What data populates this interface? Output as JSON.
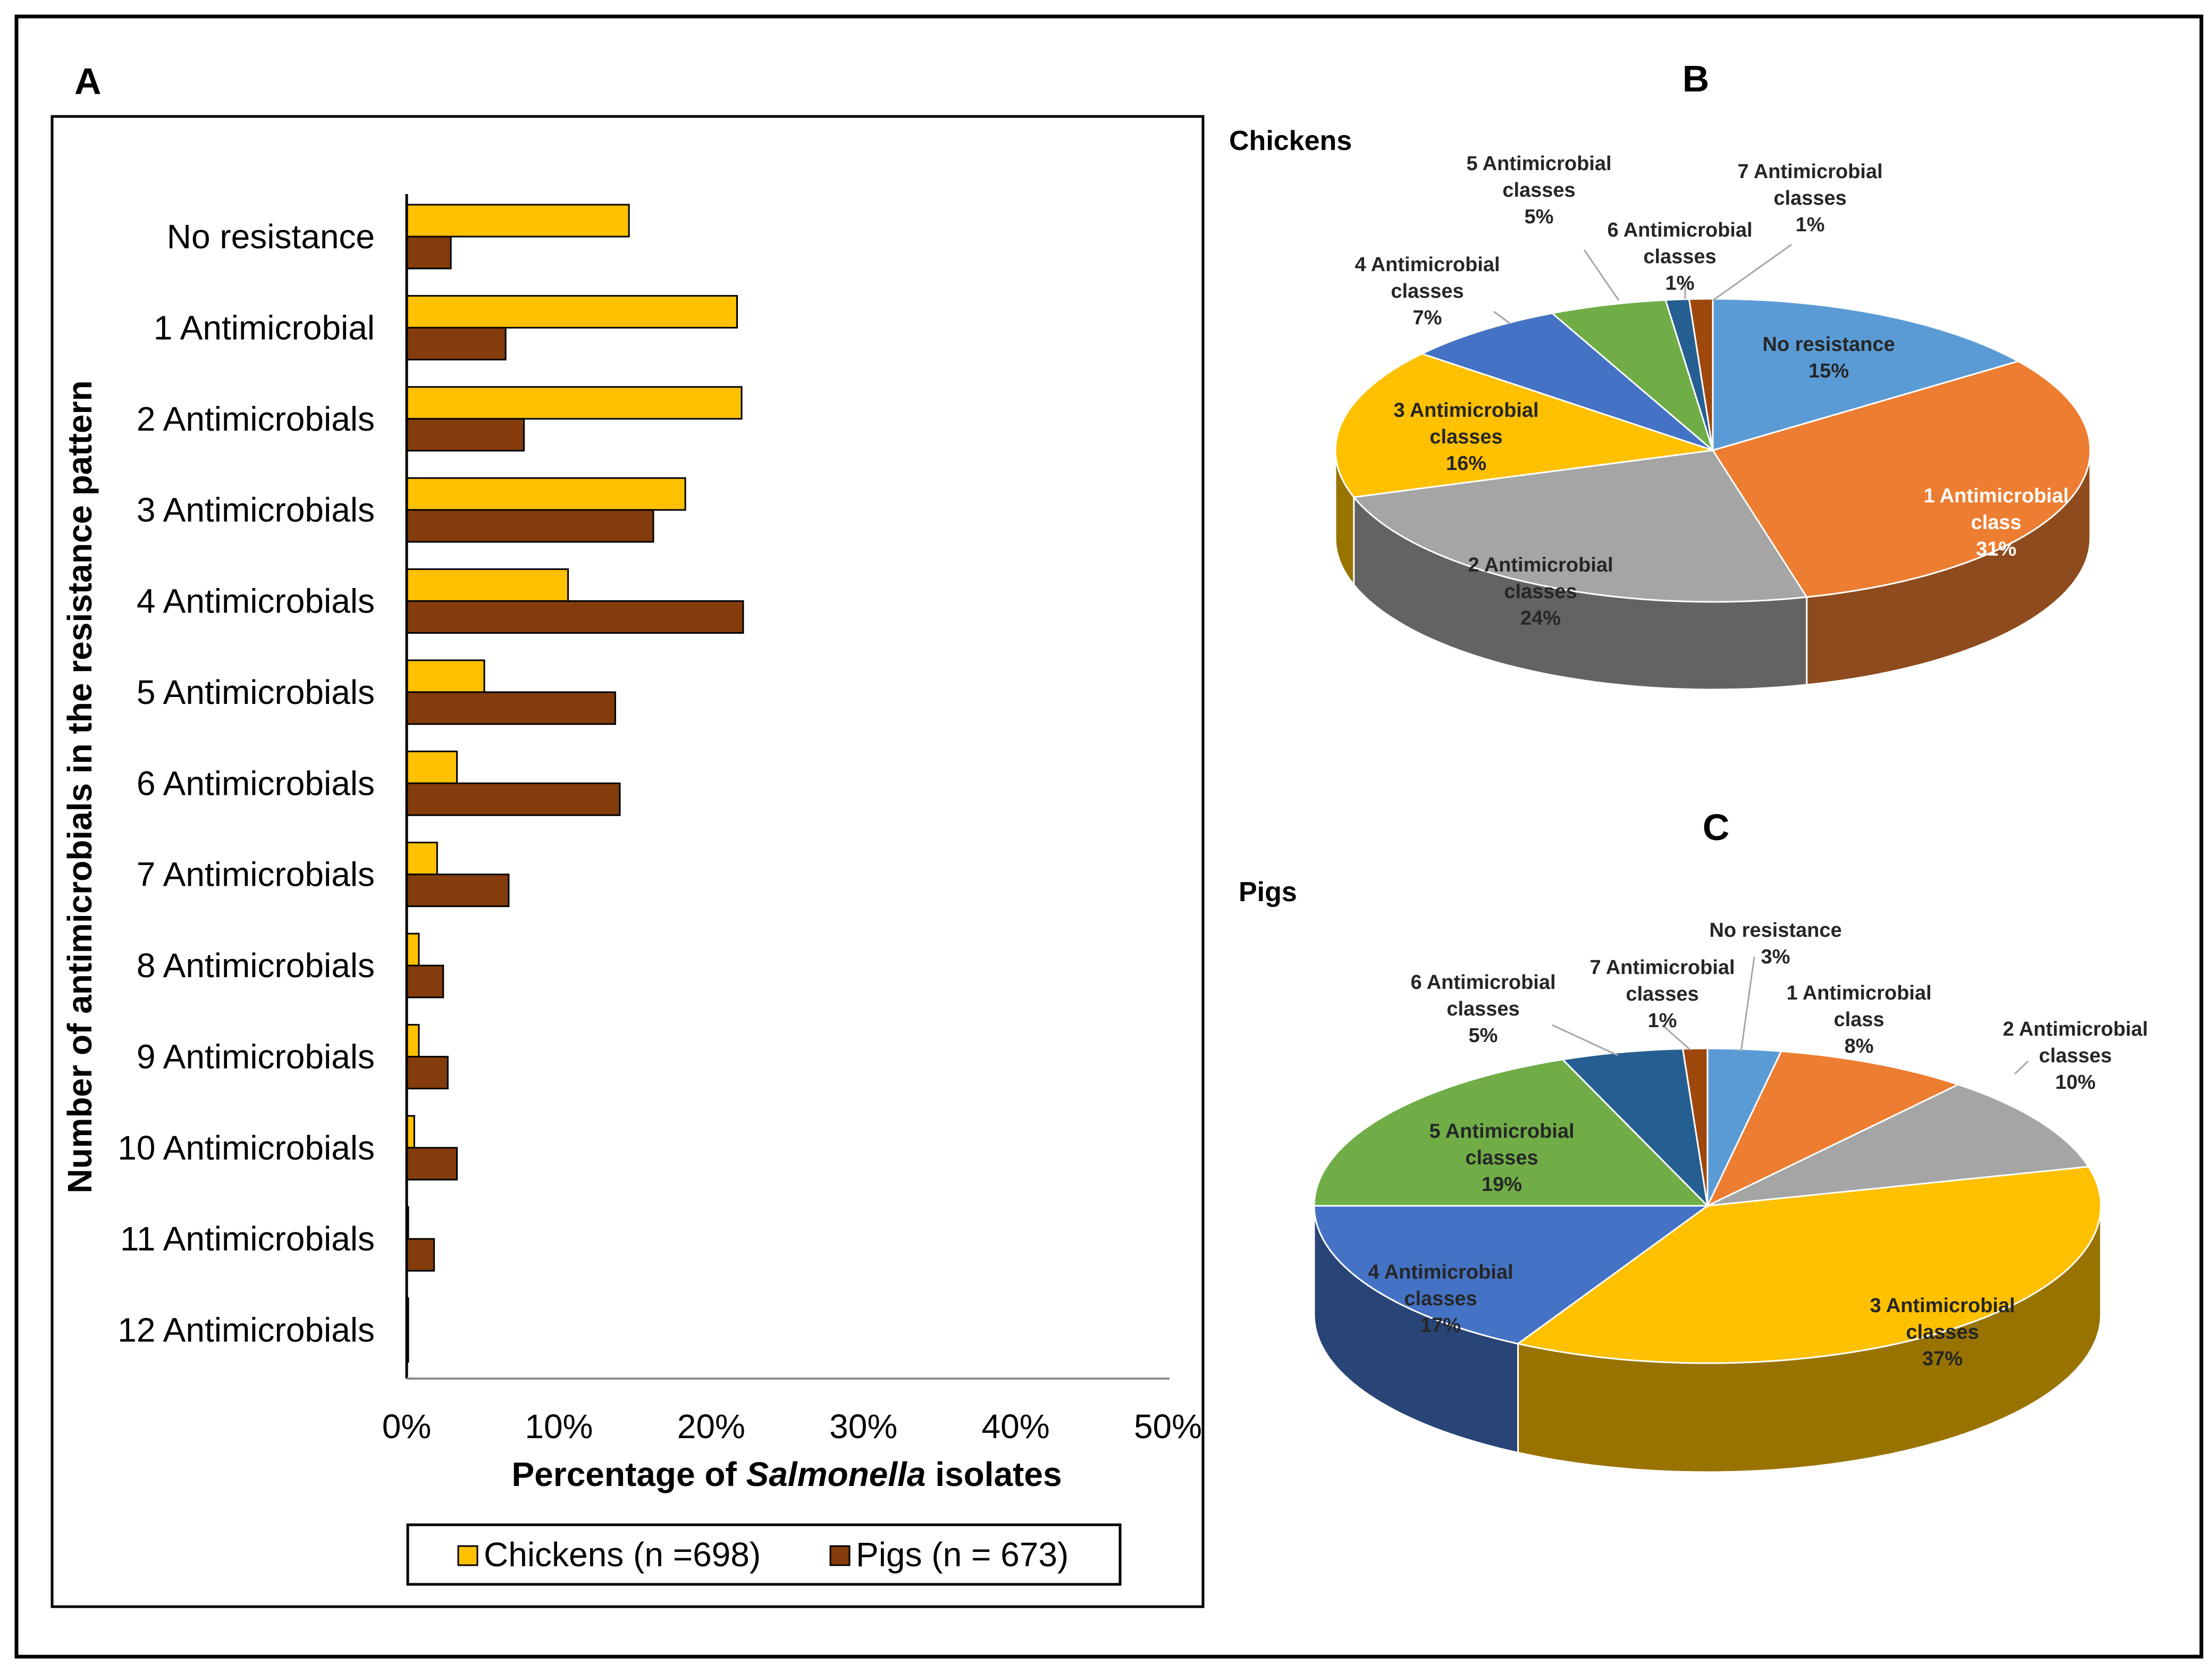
{
  "colors": {
    "chickens": "#FFC000",
    "pigs": "#843C0C",
    "blue_light": "#5B9BD5",
    "orange": "#ED7D31",
    "gray": "#A5A5A5",
    "yellow": "#FFC000",
    "blue": "#4472C4",
    "green": "#70AD47",
    "navy": "#255E91",
    "brown": "#9E480E"
  },
  "chart_data": [
    {
      "panel": "A",
      "type": "bar",
      "orientation": "horizontal",
      "title": "",
      "xlabel_prefix": "Percentage of ",
      "xlabel_italic": "Salmonella",
      "xlabel_suffix": " isolates",
      "ylabel": "Number of antimicrobials in the resistance pattern",
      "xlim": [
        0,
        50
      ],
      "xticks": [
        "0%",
        "10%",
        "20%",
        "30%",
        "40%",
        "50%"
      ],
      "categories": [
        "No resistance",
        "1 Antimicrobial",
        "2 Antimicrobials",
        "3 Antimicrobials",
        "4 Antimicrobials",
        "5 Antimicrobials",
        "6 Antimicrobials",
        "7 Antimicrobials",
        "8 Antimicrobials",
        "9 Antimicrobials",
        "10 Antimicrobials",
        "11 Antimicrobials",
        "12 Antimicrobials"
      ],
      "series": [
        {
          "name": "Chickens (n =698)",
          "values": [
            14.6,
            21.7,
            22.0,
            18.3,
            10.6,
            5.1,
            3.3,
            2.0,
            0.8,
            0.8,
            0.5,
            0.1,
            0.0
          ]
        },
        {
          "name": "Pigs (n = 673)",
          "values": [
            2.9,
            6.5,
            7.7,
            16.2,
            22.1,
            13.7,
            14.0,
            6.7,
            2.4,
            2.7,
            3.3,
            1.8,
            0.1
          ]
        }
      ],
      "legend_position": "bottom"
    },
    {
      "panel": "B",
      "type": "pie",
      "subtitle": "Chickens",
      "slices": [
        {
          "label": [
            "No resistance"
          ],
          "pct": "15%",
          "value": 15,
          "color": "#5B9BD5"
        },
        {
          "label": [
            "1 Antimicrobial",
            "class"
          ],
          "pct": "31%",
          "value": 31,
          "color": "#ED7D31"
        },
        {
          "label": [
            "2 Antimicrobial",
            "classes"
          ],
          "pct": "24%",
          "value": 24,
          "color": "#A5A5A5"
        },
        {
          "label": [
            "3 Antimicrobial",
            "classes"
          ],
          "pct": "16%",
          "value": 16,
          "color": "#FFC000"
        },
        {
          "label": [
            "4 Antimicrobial",
            "classes"
          ],
          "pct": "7%",
          "value": 7,
          "color": "#4472C4"
        },
        {
          "label": [
            "5 Antimicrobial",
            "classes"
          ],
          "pct": "5%",
          "value": 5,
          "color": "#70AD47"
        },
        {
          "label": [
            "6 Antimicrobial",
            "classes"
          ],
          "pct": "1%",
          "value": 1,
          "color": "#255E91"
        },
        {
          "label": [
            "7 Antimicrobial",
            "classes"
          ],
          "pct": "1%",
          "value": 1,
          "color": "#9E480E"
        }
      ]
    },
    {
      "panel": "C",
      "type": "pie",
      "subtitle": "Pigs",
      "slices": [
        {
          "label": [
            "No resistance"
          ],
          "pct": "3%",
          "value": 3,
          "color": "#5B9BD5"
        },
        {
          "label": [
            "1 Antimicrobial",
            "class"
          ],
          "pct": "8%",
          "value": 8,
          "color": "#ED7D31"
        },
        {
          "label": [
            "2 Antimicrobial",
            "classes"
          ],
          "pct": "10%",
          "value": 10,
          "color": "#A5A5A5"
        },
        {
          "label": [
            "3 Antimicrobial",
            "classes"
          ],
          "pct": "37%",
          "value": 37,
          "color": "#FFC000"
        },
        {
          "label": [
            "4 Antimicrobial",
            "classes"
          ],
          "pct": "17%",
          "value": 17,
          "color": "#4472C4"
        },
        {
          "label": [
            "5 Antimicrobial",
            "classes"
          ],
          "pct": "19%",
          "value": 19,
          "color": "#70AD47"
        },
        {
          "label": [
            "6 Antimicrobial",
            "classes"
          ],
          "pct": "5%",
          "value": 5,
          "color": "#255E91"
        },
        {
          "label": [
            "7 Antimicrobial",
            "classes"
          ],
          "pct": "1%",
          "value": 1,
          "color": "#9E480E"
        }
      ]
    }
  ]
}
